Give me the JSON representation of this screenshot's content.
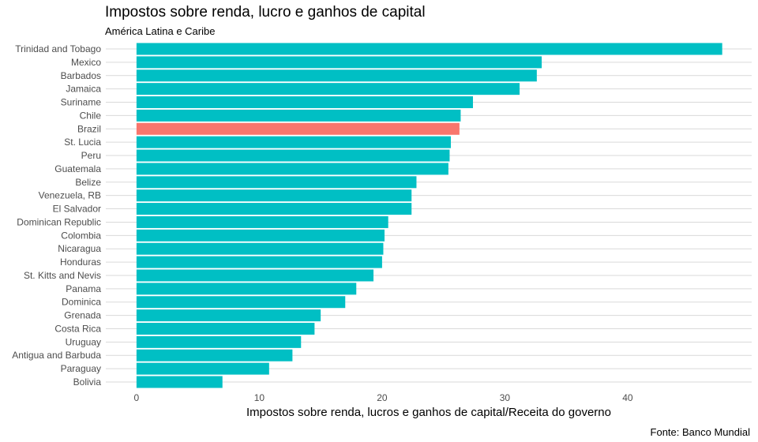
{
  "chart_data": {
    "type": "bar",
    "orientation": "horizontal",
    "title": "Impostos sobre renda, lucro e ganhos de capital",
    "subtitle": "América Latina e Caribe",
    "xlabel": "Impostos sobre renda, lucros e ganhos de capital/Receita do governo",
    "ylabel": "",
    "caption": "Fonte: Banco Mundial",
    "xlim": [
      -2.5,
      50.1
    ],
    "xticks": [
      0,
      10,
      20,
      30,
      40
    ],
    "grid": true,
    "legend": "none",
    "colors": {
      "default": "#00bfc4",
      "highlight": "#f8766d",
      "grid": "#d9d9d9"
    },
    "highlight": "Brazil",
    "categories": [
      "Trinidad and Tobago",
      "Mexico",
      "Barbados",
      "Jamaica",
      "Suriname",
      "Chile",
      "Brazil",
      "St. Lucia",
      "Peru",
      "Guatemala",
      "Belize",
      "Venezuela, RB",
      "El Salvador",
      "Dominican Republic",
      "Colombia",
      "Nicaragua",
      "Honduras",
      "St. Kitts and Nevis",
      "Panama",
      "Dominica",
      "Grenada",
      "Costa Rica",
      "Uruguay",
      "Antigua and Barbuda",
      "Paraguay",
      "Bolivia"
    ],
    "values": [
      47.7,
      33.0,
      32.6,
      31.2,
      27.4,
      26.4,
      26.3,
      25.6,
      25.5,
      25.4,
      22.8,
      22.4,
      22.4,
      20.5,
      20.2,
      20.1,
      20.0,
      19.3,
      17.9,
      17.0,
      15.0,
      14.5,
      13.4,
      12.7,
      10.8,
      7.0
    ]
  }
}
